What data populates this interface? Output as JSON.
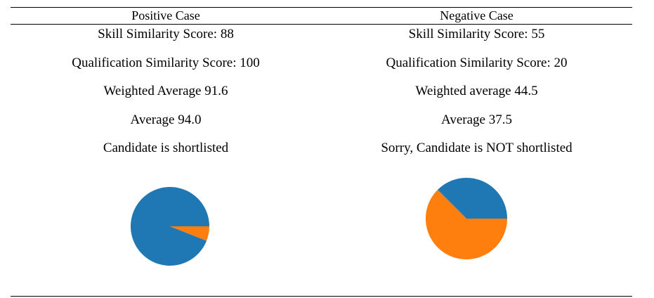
{
  "table": {
    "columns": [
      {
        "header": "Positive Case",
        "lines": [
          "Skill Similarity Score: 88",
          "Qualification Similarity Score: 100",
          "Weighted Average 91.6",
          "Average 94.0",
          "Candidate is shortlisted"
        ]
      },
      {
        "header": "Negative Case",
        "lines": [
          "Skill Similarity Score: 55",
          "Qualification Similarity Score: 20",
          "Weighted average 44.5",
          "Average 37.5",
          "Sorry, Candidate is NOT shortlisted"
        ]
      }
    ]
  },
  "chart_data": [
    {
      "type": "pie",
      "values": [
        94.0,
        6.0
      ],
      "colors": [
        "#1f77b4",
        "#ff7f0e"
      ]
    },
    {
      "type": "pie",
      "values": [
        37.5,
        62.5
      ],
      "colors": [
        "#1f77b4",
        "#ff7f0e"
      ]
    }
  ]
}
